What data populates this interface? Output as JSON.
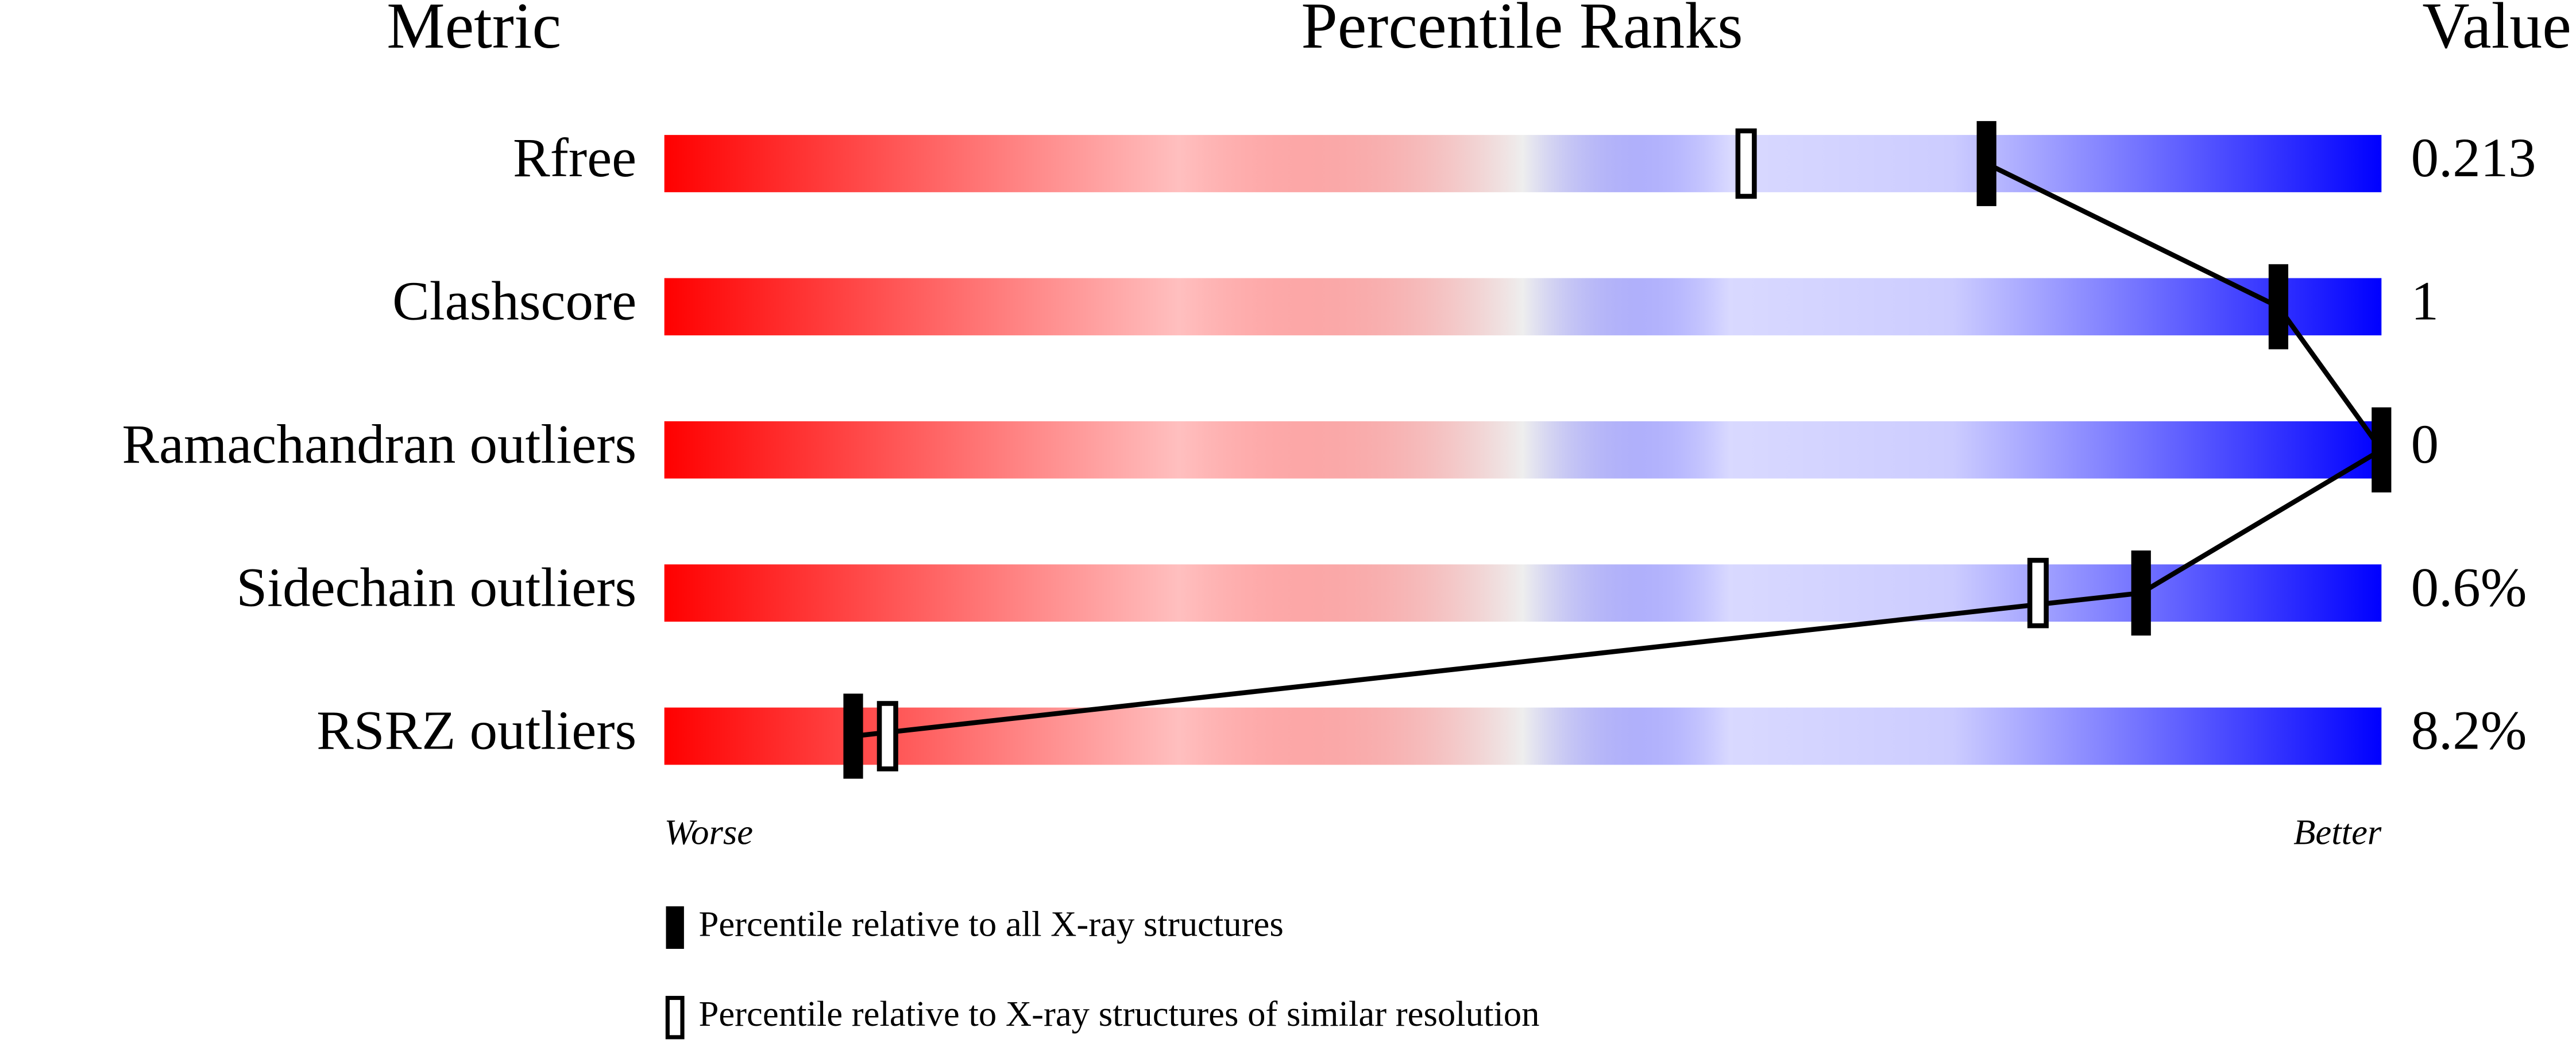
{
  "chart_data": {
    "type": "percentile",
    "headers": [
      "Metric",
      "Percentile Ranks",
      "Value"
    ],
    "categories": [
      "Rfree",
      "Clashscore",
      "Ramachandran outliers",
      "Sidechain outliers",
      "RSRZ outliers"
    ],
    "metric_values": [
      "0.213",
      "1",
      "0",
      "0.6%",
      "8.2%"
    ],
    "series": [
      {
        "name": "Percentile relative to all X-ray structures",
        "style": "filled",
        "color": "#000000",
        "values": [
          77,
          94,
          100,
          86,
          11
        ]
      },
      {
        "name": "Percentile relative to X-ray structures of similar resolution",
        "style": "hollow",
        "color": "#000000",
        "values": [
          63,
          null,
          null,
          80,
          13
        ]
      }
    ],
    "xlim": [
      0,
      100
    ],
    "x_low_label": "Worse",
    "x_high_label": "Better",
    "gradient": [
      "#ff0000",
      "#eeeeee",
      "#0000ff"
    ],
    "connect_series": 0
  }
}
